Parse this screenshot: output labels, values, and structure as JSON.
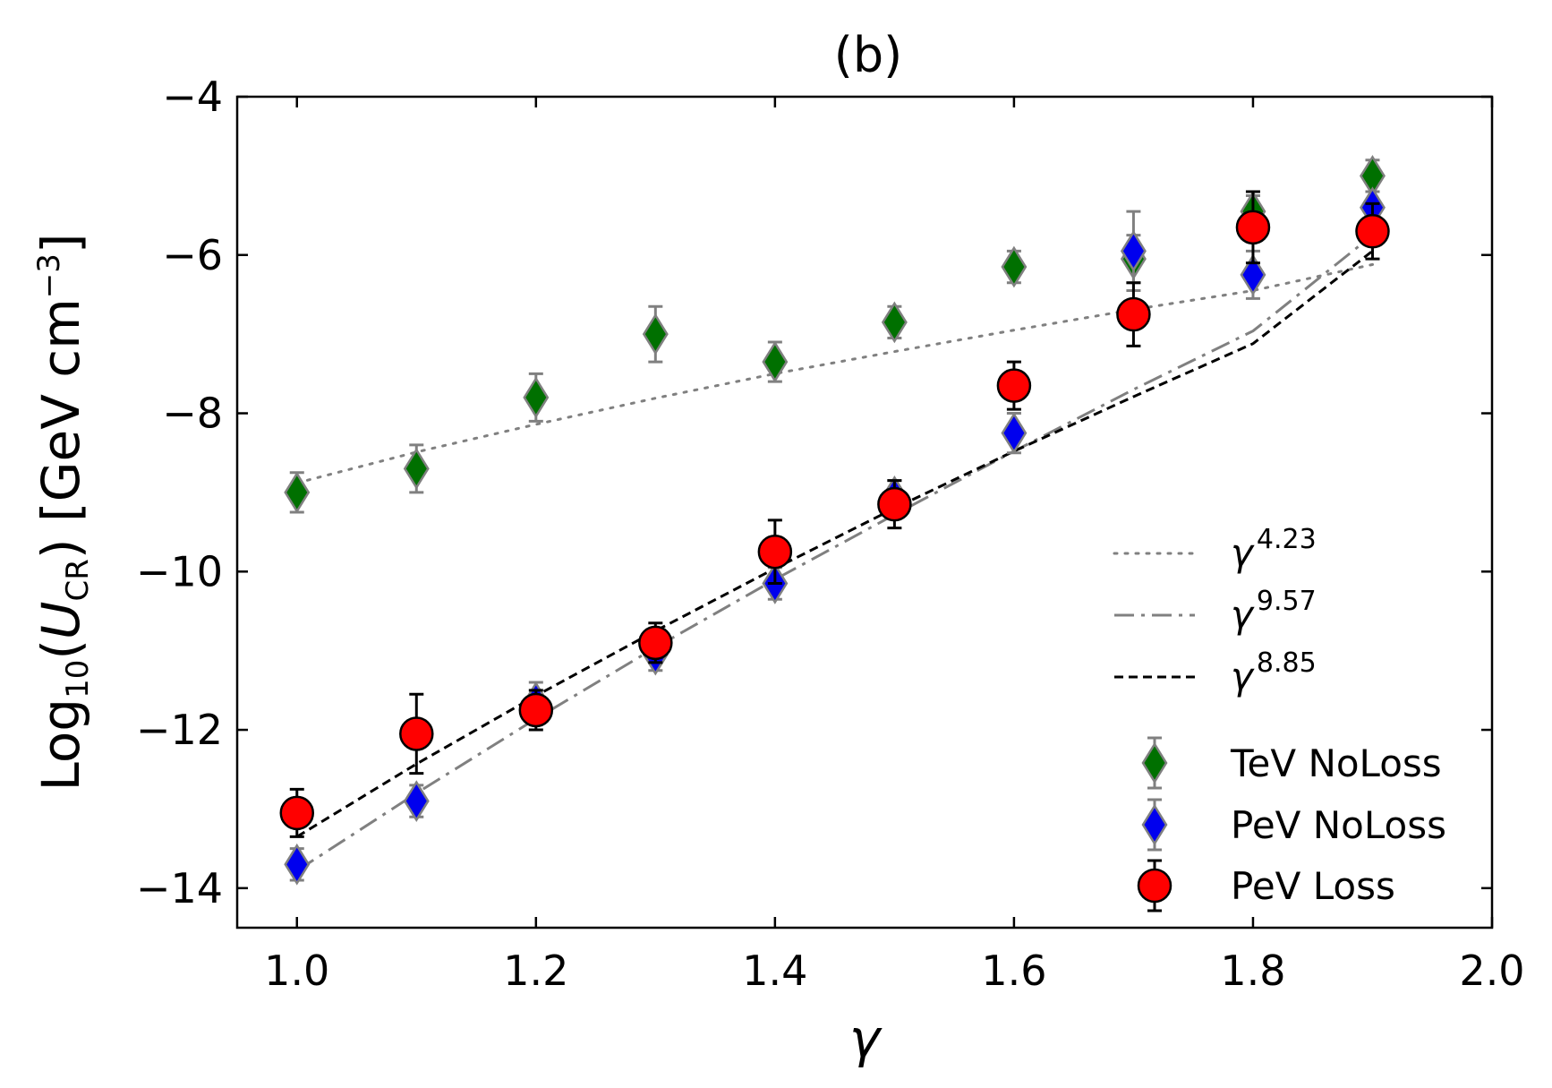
{
  "chart_data": {
    "type": "scatter",
    "title": "(b)",
    "xlabel": "γ",
    "ylabel": {
      "prefix": "Log",
      "prefix_sub": "10",
      "open": "(",
      "var": "U",
      "var_sub": "CR",
      "close": ") [GeV cm",
      "power": "−3",
      "end": "]"
    },
    "xlim": [
      0.95,
      2.0
    ],
    "ylim": [
      -14.5,
      -4
    ],
    "xticks": [
      1.0,
      1.2,
      1.4,
      1.6,
      1.8,
      2.0
    ],
    "xtick_labels": [
      "1.0",
      "1.2",
      "1.4",
      "1.6",
      "1.8",
      "2.0"
    ],
    "yticks": [
      -14,
      -12,
      -10,
      -8,
      -6,
      -4
    ],
    "ytick_labels": [
      "−14",
      "−12",
      "−10",
      "−8",
      "−6",
      "−4"
    ],
    "grid": false,
    "legend_position": "lower-right",
    "fit_lines": [
      {
        "name": "γ",
        "exponent": "4.23",
        "style": "dotted",
        "color": "#808080",
        "x": [
          1.0,
          1.1,
          1.2,
          1.3,
          1.4,
          1.5,
          1.6,
          1.7,
          1.8,
          1.9
        ],
        "y": [
          -8.88,
          -8.49,
          -8.14,
          -7.81,
          -7.5,
          -7.22,
          -6.95,
          -6.69,
          -6.45,
          -6.12
        ]
      },
      {
        "name": "γ",
        "exponent": "9.57",
        "style": "dashdot",
        "color": "#808080",
        "x": [
          1.0,
          1.1,
          1.2,
          1.3,
          1.4,
          1.5,
          1.6,
          1.7,
          1.8,
          1.9
        ],
        "y": [
          -13.78,
          -12.8,
          -11.86,
          -10.96,
          -10.1,
          -9.28,
          -8.48,
          -7.7,
          -6.96,
          -5.75
        ]
      },
      {
        "name": "γ",
        "exponent": "8.85",
        "style": "dashed",
        "color": "#000000",
        "x": [
          1.0,
          1.1,
          1.2,
          1.3,
          1.4,
          1.5,
          1.6,
          1.7,
          1.8,
          1.9
        ],
        "y": [
          -13.35,
          -12.43,
          -11.57,
          -10.75,
          -9.96,
          -9.2,
          -8.48,
          -7.79,
          -7.12,
          -5.95
        ]
      }
    ],
    "series": [
      {
        "name": "TeV NoLoss",
        "marker": "diamond",
        "color": "#007000",
        "x": [
          1.0,
          1.1,
          1.2,
          1.3,
          1.4,
          1.5,
          1.6,
          1.7,
          1.8,
          1.9
        ],
        "y": [
          -9.0,
          -8.7,
          -7.8,
          -7.0,
          -7.35,
          -6.85,
          -6.15,
          -6.05,
          -5.45,
          -5.0
        ],
        "err": [
          0.25,
          0.3,
          0.3,
          0.35,
          0.25,
          0.2,
          0.2,
          0.3,
          0.2,
          0.2
        ]
      },
      {
        "name": "PeV NoLoss",
        "marker": "diamond",
        "color": "#0000ee",
        "x": [
          1.0,
          1.1,
          1.2,
          1.3,
          1.4,
          1.5,
          1.6,
          1.7,
          1.8,
          1.9
        ],
        "y": [
          -13.7,
          -12.9,
          -11.65,
          -11.05,
          -10.15,
          -9.05,
          -8.25,
          -5.95,
          -6.25,
          -5.4
        ],
        "err": [
          0.2,
          0.2,
          0.25,
          0.2,
          0.2,
          0.2,
          0.25,
          0.5,
          0.3,
          0.2
        ]
      },
      {
        "name": "PeV Loss",
        "marker": "circle",
        "color": "#ff0000",
        "x": [
          1.0,
          1.1,
          1.2,
          1.3,
          1.4,
          1.5,
          1.6,
          1.7,
          1.8,
          1.9
        ],
        "y": [
          -13.05,
          -12.05,
          -11.75,
          -10.9,
          -9.75,
          -9.15,
          -7.65,
          -6.75,
          -5.65,
          -5.7
        ],
        "err": [
          0.3,
          0.5,
          0.25,
          0.25,
          0.4,
          0.3,
          0.3,
          0.4,
          0.45,
          0.35
        ]
      }
    ]
  }
}
